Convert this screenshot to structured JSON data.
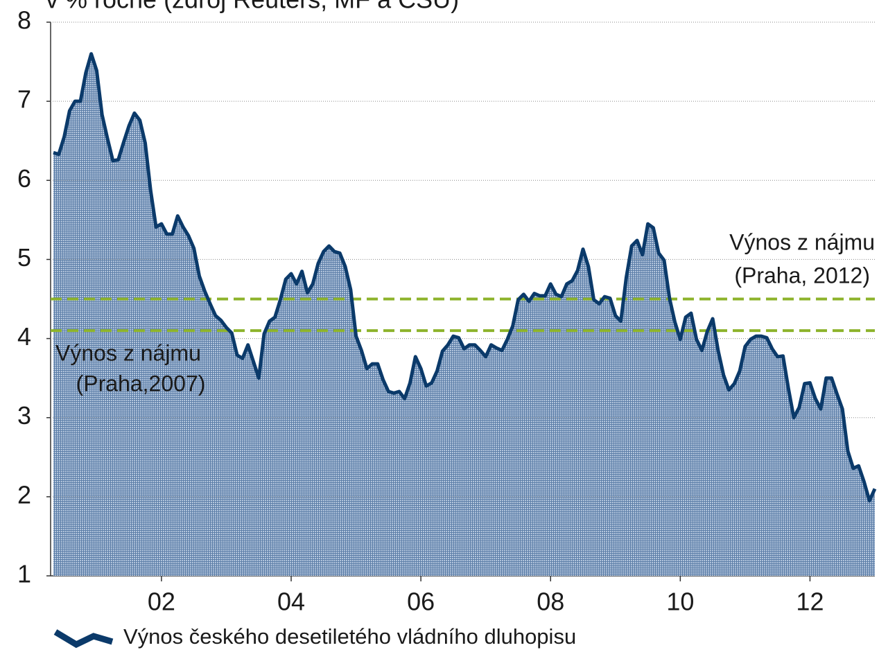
{
  "chart_data": {
    "type": "area",
    "title": "v % ročně (zdroj Reuters, MF a ČSÚ)",
    "categories": [
      null,
      null,
      null,
      null,
      null,
      null,
      null,
      null,
      null,
      null,
      null,
      null,
      null,
      null,
      null,
      null,
      null,
      null,
      null,
      null,
      "02",
      null,
      null,
      null,
      null,
      null,
      null,
      null,
      null,
      null,
      null,
      null,
      null,
      null,
      null,
      null,
      null,
      null,
      null,
      null,
      null,
      null,
      null,
      null,
      "04",
      null,
      null,
      null,
      null,
      null,
      null,
      null,
      null,
      null,
      null,
      null,
      null,
      null,
      null,
      null,
      null,
      null,
      null,
      null,
      null,
      null,
      null,
      null,
      "06",
      null,
      null,
      null,
      null,
      null,
      null,
      null,
      null,
      null,
      null,
      null,
      null,
      null,
      null,
      null,
      null,
      null,
      null,
      null,
      null,
      null,
      null,
      null,
      "08",
      null,
      null,
      null,
      null,
      null,
      null,
      null,
      null,
      null,
      null,
      null,
      null,
      null,
      null,
      null,
      null,
      null,
      null,
      null,
      null,
      null,
      null,
      null,
      "10",
      null,
      null,
      null,
      null,
      null,
      null,
      null,
      null,
      null,
      null,
      null,
      null,
      null,
      null,
      null,
      null,
      null,
      null,
      null,
      null,
      null,
      null,
      null,
      "12",
      null,
      null,
      null,
      null,
      null,
      null,
      null,
      null,
      null,
      null,
      null,
      null
    ],
    "series": [
      {
        "name": "Výnos českého desetiletého vládního dluhopisu",
        "color": "#0b3a6a",
        "values": [
          6.35,
          6.33,
          6.55,
          6.88,
          7.0,
          7.0,
          7.36,
          7.6,
          7.39,
          6.83,
          6.53,
          6.25,
          6.26,
          6.48,
          6.69,
          6.85,
          6.76,
          6.47,
          5.87,
          5.41,
          5.45,
          5.32,
          5.32,
          5.55,
          5.41,
          5.3,
          5.14,
          4.79,
          4.6,
          4.44,
          4.29,
          4.23,
          4.14,
          4.07,
          3.79,
          3.75,
          3.92,
          3.71,
          3.5,
          4.06,
          4.22,
          4.27,
          4.49,
          4.75,
          4.82,
          4.69,
          4.85,
          4.58,
          4.69,
          4.95,
          5.1,
          5.17,
          5.1,
          5.08,
          4.91,
          4.62,
          4.03,
          3.85,
          3.62,
          3.68,
          3.68,
          3.48,
          3.33,
          3.31,
          3.33,
          3.24,
          3.44,
          3.77,
          3.62,
          3.4,
          3.44,
          3.59,
          3.84,
          3.92,
          4.03,
          4.01,
          3.87,
          3.92,
          3.92,
          3.85,
          3.77,
          3.92,
          3.88,
          3.85,
          3.99,
          4.16,
          4.49,
          4.56,
          4.47,
          4.57,
          4.54,
          4.54,
          4.69,
          4.56,
          4.53,
          4.69,
          4.73,
          4.86,
          5.13,
          4.91,
          4.49,
          4.44,
          4.53,
          4.51,
          4.29,
          4.22,
          4.77,
          5.17,
          5.24,
          5.06,
          5.45,
          5.4,
          5.08,
          4.99,
          4.51,
          4.21,
          3.99,
          4.27,
          4.32,
          3.99,
          3.85,
          4.09,
          4.25,
          3.85,
          3.54,
          3.35,
          3.43,
          3.59,
          3.9,
          3.99,
          4.03,
          4.03,
          4.01,
          3.87,
          3.77,
          3.78,
          3.37,
          3.0,
          3.13,
          3.43,
          3.44,
          3.24,
          3.11,
          3.5,
          3.5,
          3.3,
          3.11,
          2.58,
          2.36,
          2.39,
          2.19,
          1.95,
          2.1
        ]
      }
    ],
    "ylim": [
      1,
      8
    ],
    "yticks": [
      1,
      2,
      3,
      4,
      5,
      6,
      7,
      8
    ],
    "grid": true,
    "reference_lines": [
      {
        "value": 4.5,
        "color": "#8db32b"
      },
      {
        "value": 4.1,
        "color": "#8db32b"
      }
    ],
    "annotations": [
      {
        "lines": [
          "Výnos z nájmu",
          "(Praha, 2012)"
        ]
      },
      {
        "lines": [
          "Výnos z nájmu",
          "(Praha,2007)"
        ]
      }
    ]
  }
}
